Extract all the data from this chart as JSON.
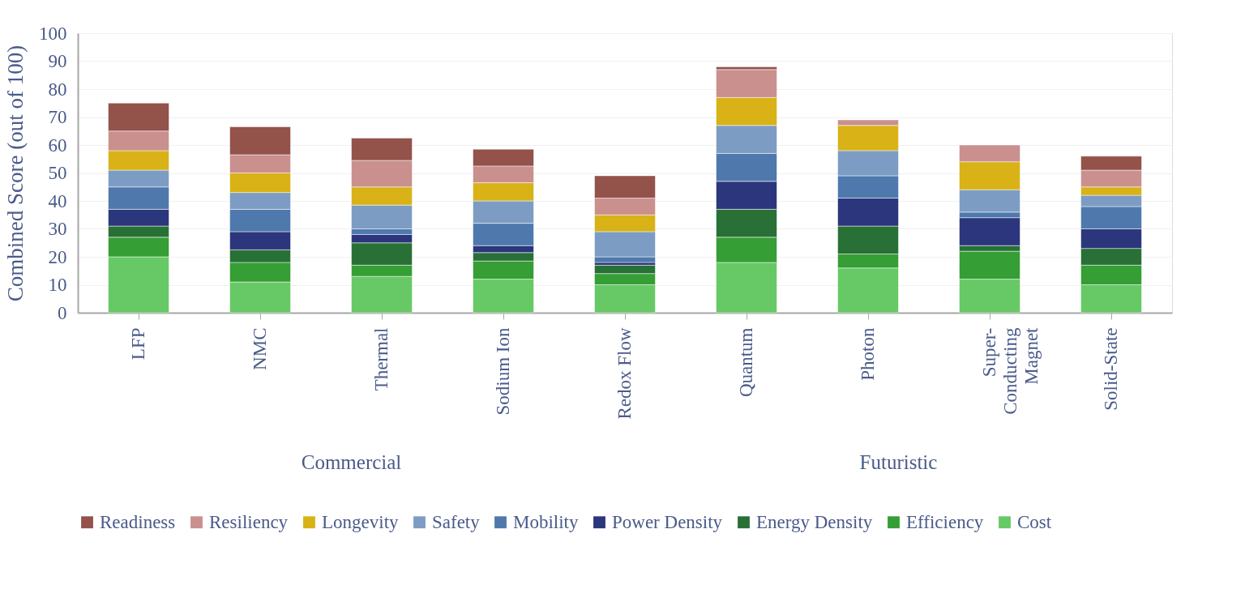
{
  "chart_data": {
    "type": "bar",
    "stacked": true,
    "ylabel": "Combined Score (out of 100)",
    "categories": [
      "LFP",
      "NMC",
      "Thermal",
      "Sodium Ion",
      "Redox Flow",
      "Quantum",
      "Photon",
      "Super-\nConducting\nMagnet",
      "Solid-State"
    ],
    "series": [
      {
        "name": "Cost",
        "color": "#66c966",
        "values": [
          20,
          11,
          13,
          12,
          10,
          18,
          16,
          12,
          10
        ]
      },
      {
        "name": "Efficiency",
        "color": "#359e35",
        "values": [
          7,
          7,
          4,
          6.5,
          4,
          9,
          5,
          10,
          7
        ]
      },
      {
        "name": "Energy Density",
        "color": "#287036",
        "values": [
          4,
          4.5,
          8,
          3,
          3,
          10,
          10,
          2,
          6
        ]
      },
      {
        "name": "Power Density",
        "color": "#2c367c",
        "values": [
          6,
          6.5,
          3,
          2.5,
          1,
          10,
          10,
          10,
          7
        ]
      },
      {
        "name": "Mobility",
        "color": "#4f79ad",
        "values": [
          8,
          8,
          2,
          8,
          2,
          10,
          8,
          2,
          8
        ]
      },
      {
        "name": "Safety",
        "color": "#7c9cc4",
        "values": [
          6,
          6,
          8.5,
          8,
          9,
          10,
          9,
          8,
          4
        ]
      },
      {
        "name": "Longevity",
        "color": "#d8b216",
        "values": [
          7,
          7,
          6.5,
          6.5,
          6,
          10,
          9,
          10,
          3
        ]
      },
      {
        "name": "Resiliency",
        "color": "#c9908e",
        "values": [
          7,
          6.5,
          9.5,
          6,
          6,
          10,
          2,
          6,
          6
        ]
      },
      {
        "name": "Readiness",
        "color": "#93524a",
        "values": [
          10,
          10,
          8,
          6,
          8,
          1,
          null,
          null,
          5
        ]
      }
    ],
    "ylim": [
      0,
      100
    ],
    "yticks": [
      0,
      10,
      20,
      30,
      40,
      50,
      60,
      70,
      80,
      90,
      100
    ],
    "grid": "y",
    "legend": "bottom",
    "annotations": [
      "Commercial",
      "Futuristic"
    ]
  }
}
